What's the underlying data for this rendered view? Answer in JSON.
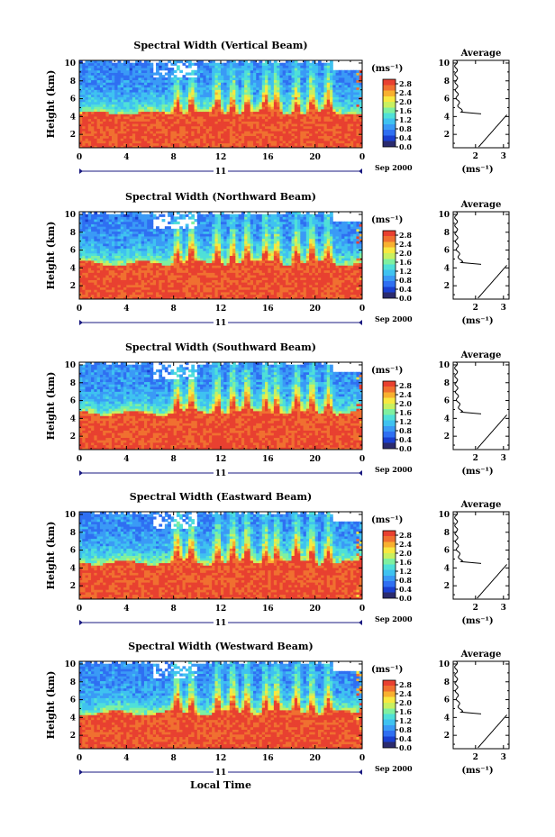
{
  "chart_data": [
    {
      "type": "heatmap",
      "title": "Spectral Width (Vertical Beam)",
      "ylabel": "Height (km)",
      "x_ticks": [
        "0",
        "4",
        "8",
        "12",
        "16",
        "20",
        "0"
      ],
      "y_ticks": [
        "2",
        "4",
        "6",
        "8",
        "10"
      ],
      "date_label": "11",
      "date_suffix": "Sep 2000",
      "xlim": [
        0,
        24
      ],
      "ylim": [
        0.5,
        10.3
      ],
      "colorbar": {
        "label": "(ms⁻¹)",
        "ticks": [
          "0.0",
          "0.4",
          "0.8",
          "1.2",
          "1.6",
          "2.0",
          "2.4",
          "2.8"
        ],
        "range": [
          0,
          3.0
        ]
      },
      "layer_top_km": 4.3,
      "profile": {
        "title": "Average",
        "xlabel": "(ms⁻¹)",
        "x_ticks": [
          "2",
          "3"
        ],
        "y_ticks": [
          "2",
          "4",
          "6",
          "8",
          "10"
        ],
        "xlim": [
          1.2,
          3.2
        ],
        "ylim": [
          0.5,
          10.3
        ]
      }
    },
    {
      "type": "heatmap",
      "title": "Spectral Width (Northward Beam)",
      "ylabel": "Height (km)",
      "x_ticks": [
        "0",
        "4",
        "8",
        "12",
        "16",
        "20",
        "0"
      ],
      "y_ticks": [
        "2",
        "4",
        "6",
        "8",
        "10"
      ],
      "date_label": "11",
      "date_suffix": "Sep 2000",
      "xlim": [
        0,
        24
      ],
      "ylim": [
        0.5,
        10.3
      ],
      "colorbar": {
        "label": "(ms⁻¹)",
        "ticks": [
          "0.0",
          "0.4",
          "0.8",
          "1.2",
          "1.6",
          "2.0",
          "2.4",
          "2.8"
        ],
        "range": [
          0,
          3.0
        ]
      },
      "layer_top_km": 4.4,
      "profile": {
        "title": "Average",
        "xlabel": "(ms⁻¹)",
        "x_ticks": [
          "2",
          "3"
        ],
        "y_ticks": [
          "2",
          "4",
          "6",
          "8",
          "10"
        ],
        "xlim": [
          1.2,
          3.2
        ],
        "ylim": [
          0.5,
          10.3
        ]
      }
    },
    {
      "type": "heatmap",
      "title": "Spectral Width (Southward Beam)",
      "ylabel": "Height (km)",
      "x_ticks": [
        "0",
        "4",
        "8",
        "12",
        "16",
        "20",
        "0"
      ],
      "y_ticks": [
        "2",
        "4",
        "6",
        "8",
        "10"
      ],
      "date_label": "11",
      "date_suffix": "Sep 2000",
      "xlim": [
        0,
        24
      ],
      "ylim": [
        0.5,
        10.3
      ],
      "colorbar": {
        "label": "(ms⁻¹)",
        "ticks": [
          "0.0",
          "0.4",
          "0.8",
          "1.2",
          "1.6",
          "2.0",
          "2.4",
          "2.8"
        ],
        "range": [
          0,
          3.0
        ]
      },
      "layer_top_km": 4.5,
      "profile": {
        "title": "Average",
        "xlabel": "(ms⁻¹)",
        "x_ticks": [
          "2",
          "3"
        ],
        "y_ticks": [
          "2",
          "4",
          "6",
          "8",
          "10"
        ],
        "xlim": [
          1.2,
          3.2
        ],
        "ylim": [
          0.5,
          10.3
        ]
      }
    },
    {
      "type": "heatmap",
      "title": "Spectral Width (Eastward Beam)",
      "ylabel": "Height (km)",
      "x_ticks": [
        "0",
        "4",
        "8",
        "12",
        "16",
        "20",
        "0"
      ],
      "y_ticks": [
        "2",
        "4",
        "6",
        "8",
        "10"
      ],
      "date_label": "11",
      "date_suffix": "Sep 2000",
      "xlim": [
        0,
        24
      ],
      "ylim": [
        0.5,
        10.3
      ],
      "colorbar": {
        "label": "(ms⁻¹)",
        "ticks": [
          "0.0",
          "0.4",
          "0.8",
          "1.2",
          "1.6",
          "2.0",
          "2.4",
          "2.8"
        ],
        "range": [
          0,
          3.0
        ]
      },
      "layer_top_km": 4.5,
      "profile": {
        "title": "Average",
        "xlabel": "(ms⁻¹)",
        "x_ticks": [
          "2",
          "3"
        ],
        "y_ticks": [
          "2",
          "4",
          "6",
          "8",
          "10"
        ],
        "xlim": [
          1.2,
          3.2
        ],
        "ylim": [
          0.5,
          10.3
        ]
      }
    },
    {
      "type": "heatmap",
      "title": "Spectral Width (Westward Beam)",
      "ylabel": "Height (km)",
      "xlabel": "Local Time",
      "x_ticks": [
        "0",
        "4",
        "8",
        "12",
        "16",
        "20",
        "0"
      ],
      "y_ticks": [
        "2",
        "4",
        "6",
        "8",
        "10"
      ],
      "date_label": "11",
      "date_suffix": "Sep 2000",
      "xlim": [
        0,
        24
      ],
      "ylim": [
        0.5,
        10.3
      ],
      "colorbar": {
        "label": "(ms⁻¹)",
        "ticks": [
          "0.0",
          "0.4",
          "0.8",
          "1.2",
          "1.6",
          "2.0",
          "2.4",
          "2.8"
        ],
        "range": [
          0,
          3.0
        ]
      },
      "layer_top_km": 4.4,
      "profile": {
        "title": "Average",
        "xlabel": "(ms⁻¹)",
        "x_ticks": [
          "2",
          "3"
        ],
        "y_ticks": [
          "2",
          "4",
          "6",
          "8",
          "10"
        ],
        "xlim": [
          1.2,
          3.2
        ],
        "ylim": [
          0.5,
          10.3
        ]
      }
    }
  ],
  "colors": {
    "colormap": [
      "#2b2b6e",
      "#1a3fd0",
      "#2f6ff2",
      "#3a9af6",
      "#3fc2f0",
      "#4fe0d8",
      "#7ff0a0",
      "#c8f060",
      "#f8e840",
      "#f8b030",
      "#f07030",
      "#e84030"
    ],
    "no_data": "#ffffff"
  }
}
